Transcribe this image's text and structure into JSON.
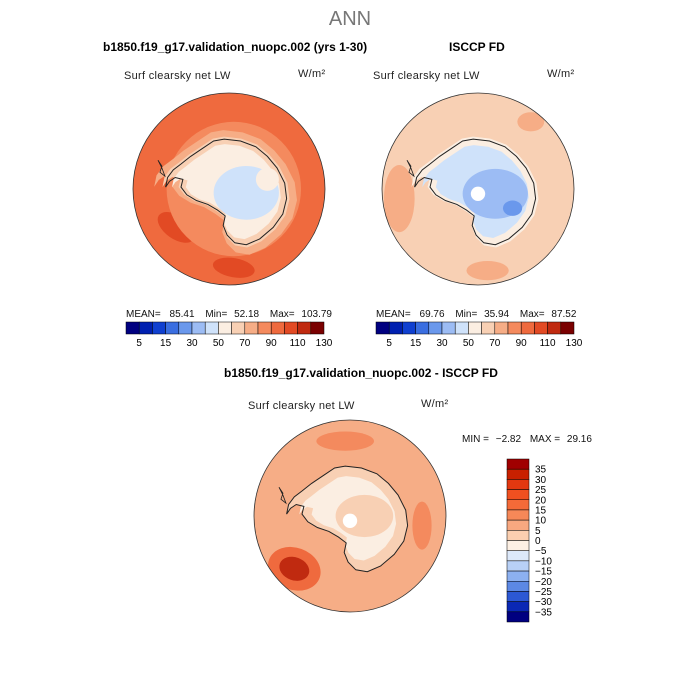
{
  "title": "ANN",
  "panels": [
    {
      "id": "model",
      "title": "b1850.f19_g17.validation_nuopc.002 (yrs 1-30)",
      "variable": "Surf clearsky net LW",
      "units": "W/m²",
      "stats": {
        "mean_label": "MEAN=",
        "mean": "85.41",
        "min_label": "Min=",
        "min": "52.18",
        "max_label": "Max=",
        "max": "103.79"
      }
    },
    {
      "id": "obs",
      "title": "ISCCP FD",
      "variable": "Surf clearsky net LW",
      "units": "W/m²",
      "stats": {
        "mean_label": "MEAN=",
        "mean": "69.76",
        "min_label": "Min=",
        "min": "35.94",
        "max_label": "Max=",
        "max": "87.52"
      }
    },
    {
      "id": "diff",
      "title": "b1850.f19_g17.validation_nuopc.002 - ISCCP FD",
      "variable": "Surf clearsky net LW",
      "units": "W/m²",
      "stats": {
        "min_label": "MIN =",
        "min": "−2.82",
        "max_label": "MAX =",
        "max": "29.16"
      }
    }
  ],
  "chart_data": [
    {
      "type": "heatmap",
      "projection": "polar-stereographic-south",
      "title": "b1850.f19_g17.validation_nuopc.002 (yrs 1-30)",
      "subtitle": "Surf clearsky net LW",
      "units": "W/m²",
      "mean": 85.41,
      "min": 52.18,
      "max": 103.79,
      "colorbar": {
        "orientation": "horizontal",
        "tick_labels": [
          "5",
          "15",
          "30",
          "50",
          "70",
          "90",
          "110",
          "130"
        ],
        "colors": [
          "#000080",
          "#0020b0",
          "#1040d0",
          "#3a6ee0",
          "#6a98ec",
          "#9cbcf4",
          "#cfe2fa",
          "#fbeee2",
          "#f8d0b4",
          "#f6ad86",
          "#f48a5e",
          "#ef6a3e",
          "#e24a24",
          "#c02a10",
          "#7a0000"
        ]
      }
    },
    {
      "type": "heatmap",
      "projection": "polar-stereographic-south",
      "title": "ISCCP FD",
      "subtitle": "Surf clearsky net LW",
      "units": "W/m²",
      "mean": 69.76,
      "min": 35.94,
      "max": 87.52,
      "colorbar": {
        "orientation": "horizontal",
        "tick_labels": [
          "5",
          "15",
          "30",
          "50",
          "70",
          "90",
          "110",
          "130"
        ],
        "colors": [
          "#000080",
          "#0020b0",
          "#1040d0",
          "#3a6ee0",
          "#6a98ec",
          "#9cbcf4",
          "#cfe2fa",
          "#fbeee2",
          "#f8d0b4",
          "#f6ad86",
          "#f48a5e",
          "#ef6a3e",
          "#e24a24",
          "#c02a10",
          "#7a0000"
        ]
      }
    },
    {
      "type": "heatmap",
      "projection": "polar-stereographic-south",
      "title": "b1850.f19_g17.validation_nuopc.002 - ISCCP FD",
      "subtitle": "Surf clearsky net LW",
      "units": "W/m²",
      "min": -2.82,
      "max": 29.16,
      "colorbar": {
        "orientation": "vertical",
        "tick_labels": [
          "35",
          "30",
          "25",
          "20",
          "15",
          "10",
          "5",
          "0",
          "−5",
          "−10",
          "−15",
          "−20",
          "−25",
          "−30",
          "−35"
        ],
        "colors": [
          "#a00000",
          "#c82000",
          "#e23810",
          "#f05020",
          "#f46a38",
          "#f68858",
          "#f8a880",
          "#fbcfb0",
          "#fdf0e4",
          "#dde9fa",
          "#b8d0f6",
          "#8cb0f0",
          "#5c88e4",
          "#2c58d4",
          "#0a28b4",
          "#000080"
        ]
      }
    }
  ]
}
